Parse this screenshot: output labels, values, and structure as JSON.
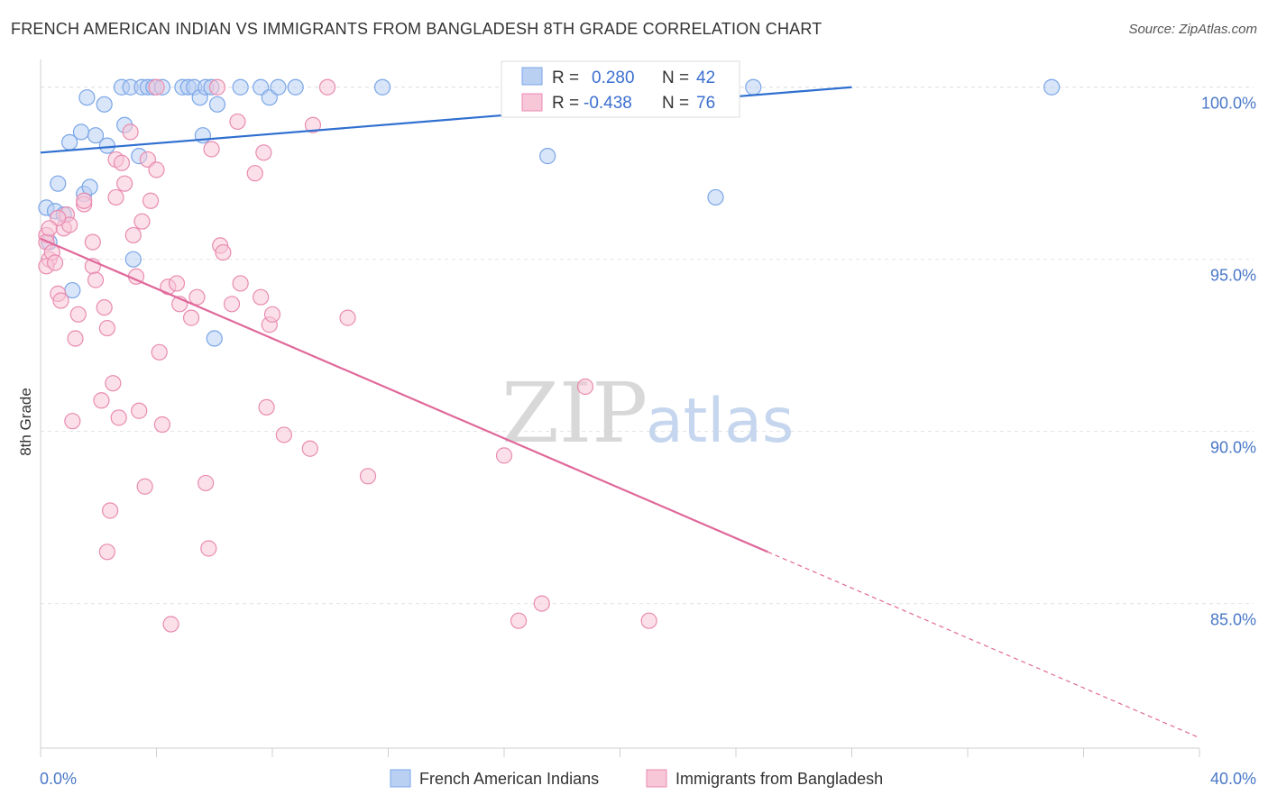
{
  "title": "FRENCH AMERICAN INDIAN VS IMMIGRANTS FROM BANGLADESH 8TH GRADE CORRELATION CHART",
  "source": "Source: ZipAtlas.com",
  "watermark": {
    "zip": "ZIP",
    "atlas": "atlas"
  },
  "stats_box": {
    "rows": [
      {
        "r_label": "R =",
        "r_value": "0.280",
        "n_label": "N =",
        "n_value": "42",
        "color": "#7aa6e8",
        "fill": "#b9d0f3"
      },
      {
        "r_label": "R =",
        "r_value": "-0.438",
        "n_label": "N =",
        "n_value": "76",
        "color": "#e98bb0",
        "fill": "#f7c6d7"
      }
    ]
  },
  "legend": [
    {
      "label": "French American Indians",
      "color": "#7aa6e8",
      "fill": "#b9d0f3"
    },
    {
      "label": "Immigrants from Bangladesh",
      "color": "#e98bb0",
      "fill": "#f7c6d7"
    }
  ],
  "chart_data": {
    "type": "scatter",
    "title": "FRENCH AMERICAN INDIAN VS IMMIGRANTS FROM BANGLADESH 8TH GRADE CORRELATION CHART",
    "xlabel": "",
    "ylabel": "8th Grade",
    "xlim": [
      0,
      40
    ],
    "ylim": [
      80.8,
      100.7
    ],
    "x_tick_labels": [
      "0.0%",
      "40.0%"
    ],
    "y_ticks": [
      85,
      90,
      95,
      100
    ],
    "y_tick_labels": [
      "85.0%",
      "90.0%",
      "95.0%",
      "100.0%"
    ],
    "grid": true,
    "series": [
      {
        "name": "French American Indians",
        "color": "#7aa6e8",
        "fill": "#b9d0f3",
        "trend": {
          "x": [
            0,
            28
          ],
          "y": [
            98.1,
            100.0
          ],
          "style": "solid",
          "color": "#2f6fd0"
        },
        "points": [
          [
            0.3,
            95.5
          ],
          [
            0.2,
            96.5
          ],
          [
            0.5,
            96.4
          ],
          [
            0.6,
            97.2
          ],
          [
            0.8,
            96.3
          ],
          [
            1.0,
            98.4
          ],
          [
            1.4,
            98.7
          ],
          [
            1.6,
            99.7
          ],
          [
            1.5,
            96.9
          ],
          [
            1.7,
            97.1
          ],
          [
            1.9,
            98.6
          ],
          [
            2.2,
            99.5
          ],
          [
            2.3,
            98.3
          ],
          [
            2.9,
            98.9
          ],
          [
            2.8,
            100.0
          ],
          [
            3.1,
            100.0
          ],
          [
            3.5,
            100.0
          ],
          [
            3.7,
            100.0
          ],
          [
            3.9,
            100.0
          ],
          [
            4.2,
            100.0
          ],
          [
            4.9,
            100.0
          ],
          [
            5.1,
            100.0
          ],
          [
            5.3,
            100.0
          ],
          [
            5.5,
            99.7
          ],
          [
            5.7,
            100.0
          ],
          [
            5.6,
            98.6
          ],
          [
            5.9,
            100.0
          ],
          [
            6.1,
            99.5
          ],
          [
            6.9,
            100.0
          ],
          [
            7.6,
            100.0
          ],
          [
            7.9,
            99.7
          ],
          [
            8.2,
            100.0
          ],
          [
            8.8,
            100.0
          ],
          [
            11.8,
            100.0
          ],
          [
            17.5,
            98.0
          ],
          [
            23.3,
            96.8
          ],
          [
            24.6,
            100.0
          ],
          [
            34.9,
            100.0
          ],
          [
            3.4,
            98.0
          ],
          [
            3.2,
            95.0
          ],
          [
            1.1,
            94.1
          ],
          [
            6.0,
            92.7
          ]
        ]
      },
      {
        "name": "Immigrants from Bangladesh",
        "color": "#e98bb0",
        "fill": "#f7c6d7",
        "trend": {
          "x": [
            0,
            25.1
          ],
          "y": [
            95.6,
            86.5
          ],
          "style": "solid",
          "color": "#e0689a",
          "dashed_x": [
            25.1,
            40.0
          ],
          "dashed_y": [
            86.5,
            81.1
          ]
        },
        "points": [
          [
            0.2,
            95.7
          ],
          [
            0.2,
            95.5
          ],
          [
            0.3,
            95.0
          ],
          [
            0.2,
            94.8
          ],
          [
            0.4,
            95.2
          ],
          [
            0.5,
            94.9
          ],
          [
            0.6,
            94.0
          ],
          [
            0.7,
            93.8
          ],
          [
            0.8,
            95.9
          ],
          [
            0.9,
            96.3
          ],
          [
            1.0,
            96.0
          ],
          [
            1.2,
            92.7
          ],
          [
            1.3,
            93.4
          ],
          [
            1.5,
            96.6
          ],
          [
            1.8,
            95.5
          ],
          [
            1.8,
            94.8
          ],
          [
            1.9,
            94.4
          ],
          [
            2.1,
            90.9
          ],
          [
            2.2,
            93.6
          ],
          [
            2.3,
            93.0
          ],
          [
            2.5,
            91.4
          ],
          [
            2.6,
            96.8
          ],
          [
            2.6,
            97.9
          ],
          [
            2.7,
            90.4
          ],
          [
            2.8,
            97.8
          ],
          [
            2.9,
            97.2
          ],
          [
            3.1,
            98.7
          ],
          [
            3.2,
            95.7
          ],
          [
            3.3,
            94.5
          ],
          [
            3.4,
            90.6
          ],
          [
            3.5,
            96.1
          ],
          [
            3.6,
            88.4
          ],
          [
            3.7,
            97.9
          ],
          [
            3.8,
            96.7
          ],
          [
            4.0,
            100.0
          ],
          [
            4.0,
            97.6
          ],
          [
            4.1,
            92.3
          ],
          [
            4.2,
            90.2
          ],
          [
            4.4,
            94.2
          ],
          [
            4.5,
            84.4
          ],
          [
            4.7,
            94.3
          ],
          [
            4.8,
            93.7
          ],
          [
            5.2,
            93.3
          ],
          [
            5.4,
            93.9
          ],
          [
            5.7,
            88.5
          ],
          [
            5.8,
            86.6
          ],
          [
            5.9,
            98.2
          ],
          [
            6.1,
            100.0
          ],
          [
            6.2,
            95.4
          ],
          [
            6.3,
            95.2
          ],
          [
            6.6,
            93.7
          ],
          [
            6.8,
            99.0
          ],
          [
            6.9,
            94.3
          ],
          [
            7.4,
            97.5
          ],
          [
            7.6,
            93.9
          ],
          [
            7.7,
            98.1
          ],
          [
            7.8,
            90.7
          ],
          [
            7.9,
            93.1
          ],
          [
            8.0,
            93.4
          ],
          [
            8.4,
            89.9
          ],
          [
            9.3,
            89.5
          ],
          [
            9.4,
            98.9
          ],
          [
            9.9,
            100.0
          ],
          [
            10.6,
            93.3
          ],
          [
            11.3,
            88.7
          ],
          [
            16.0,
            89.3
          ],
          [
            16.5,
            84.5
          ],
          [
            17.3,
            85.0
          ],
          [
            18.8,
            91.3
          ],
          [
            21.0,
            84.5
          ],
          [
            0.6,
            96.2
          ],
          [
            1.5,
            96.7
          ],
          [
            2.3,
            86.5
          ],
          [
            2.4,
            87.7
          ],
          [
            1.1,
            90.3
          ],
          [
            0.3,
            95.9
          ]
        ]
      }
    ]
  }
}
